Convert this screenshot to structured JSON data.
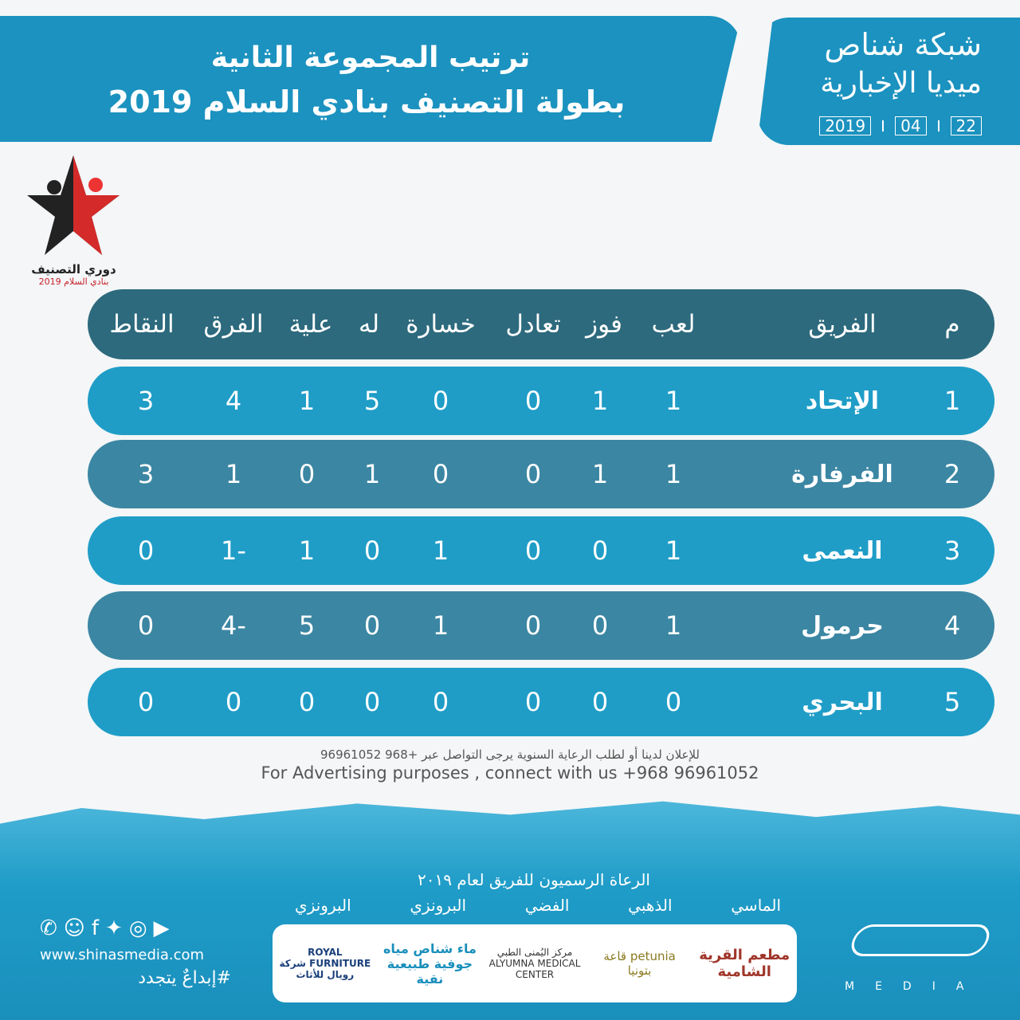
{
  "header": {
    "title_line1": "ترتيب المجموعة الثانية",
    "title_line2": "بطولة التصنيف بنادي السلام 2019"
  },
  "brand": {
    "line1": "شبكة شناص",
    "line2": "ميديا الإخبارية",
    "day": "22",
    "month": "04",
    "year": "2019"
  },
  "league_logo": {
    "line1": "دوري التصنيف",
    "line2": "بنادي السلام 2019"
  },
  "table": {
    "headers": {
      "rank": "م",
      "team": "الفريق",
      "played": "لعب",
      "won": "فوز",
      "drawn": "تعادل",
      "lost": "خسارة",
      "for": "له",
      "against": "علية",
      "diff": "الفرق",
      "points": "النقاط"
    },
    "rows": [
      {
        "rank": "1",
        "team": "الإتحاد",
        "played": "1",
        "won": "1",
        "drawn": "0",
        "lost": "0",
        "for": "5",
        "against": "1",
        "diff": "4",
        "points": "3"
      },
      {
        "rank": "2",
        "team": "الفرفارة",
        "played": "1",
        "won": "1",
        "drawn": "0",
        "lost": "0",
        "for": "1",
        "against": "0",
        "diff": "1",
        "points": "3"
      },
      {
        "rank": "3",
        "team": "النعمى",
        "played": "1",
        "won": "0",
        "drawn": "0",
        "lost": "1",
        "for": "0",
        "against": "1",
        "diff": "-1",
        "points": "0"
      },
      {
        "rank": "4",
        "team": "حرمول",
        "played": "1",
        "won": "0",
        "drawn": "0",
        "lost": "1",
        "for": "0",
        "against": "5",
        "diff": "-4",
        "points": "0"
      },
      {
        "rank": "5",
        "team": "البحري",
        "played": "0",
        "won": "0",
        "drawn": "0",
        "lost": "0",
        "for": "0",
        "against": "0",
        "diff": "0",
        "points": "0"
      }
    ]
  },
  "advertising": {
    "arabic": "للإعلان لدينا أو لطلب الرعاية السنوية يرجى التواصل عبر +968 96961052",
    "english": "For Advertising purposes , connect with us +968 96961052"
  },
  "sponsors": {
    "title": "الرعاة الرسميون للفريق لعام ٢٠١٩",
    "tiers": [
      "الماسي",
      "الذهبي",
      "الفضي",
      "البرونزي",
      "البرونزي"
    ],
    "logos": [
      "مطعم القرية الشامية",
      "petunia قاعة بتونيا",
      "مركز اليُمنى الطبي ALYUMNA MEDICAL CENTER",
      "ماء شناص مياه جوفية طبيعية نقية",
      "ROYAL FURNITURE شركة رويال للأثاث"
    ]
  },
  "footer": {
    "website": "www.shinasmedia.com",
    "hashtag": "#إبداعٌ يتجدد",
    "social_icons": [
      "whatsapp-icon",
      "snapchat-icon",
      "facebook-icon",
      "twitter-icon",
      "instagram-icon",
      "youtube-icon"
    ],
    "media_logo": "MEDIA"
  },
  "colors": {
    "primary": "#1f9dc7",
    "header_row": "#2d6a7d",
    "alt_row": "#3b86a3"
  }
}
